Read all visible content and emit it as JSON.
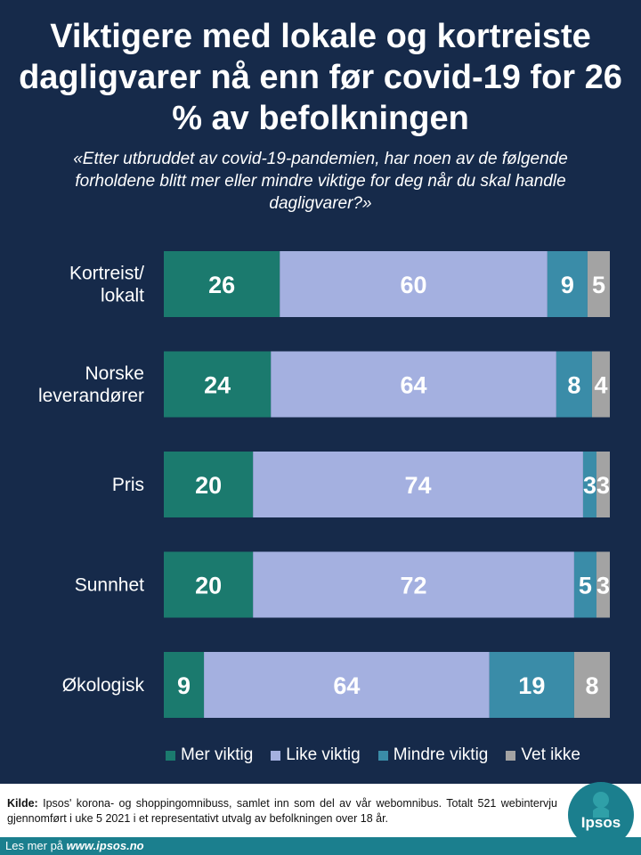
{
  "title": "Viktigere med lokale og kortreiste dagligvarer nå enn før covid-19 for 26 % av befolkningen",
  "subtitle": "«Etter utbruddet av covid-19-pandemien, har noen av de følgende forholdene blitt mer eller mindre viktige for deg når du skal handle dagligvarer?»",
  "chart_data": {
    "type": "bar",
    "orientation": "horizontal",
    "stacked": true,
    "categories": [
      "Kortreist/ lokalt",
      "Norske leverandører",
      "Pris",
      "Sunnhet",
      "Økologisk"
    ],
    "series": [
      {
        "name": "Mer viktig",
        "color": "#1b7a6e",
        "values": [
          26,
          24,
          20,
          20,
          9
        ]
      },
      {
        "name": "Like viktig",
        "color": "#a4b0e0",
        "values": [
          60,
          64,
          74,
          72,
          64
        ]
      },
      {
        "name": "Mindre viktig",
        "color": "#3a8ca8",
        "values": [
          9,
          8,
          3,
          5,
          19
        ]
      },
      {
        "name": "Vet ikke",
        "color": "#a3a3a3",
        "values": [
          5,
          4,
          3,
          3,
          8
        ]
      }
    ],
    "xlim": [
      0,
      100
    ],
    "legend": "bottom"
  },
  "footer": {
    "source_label": "Kilde:",
    "source_text": "Ipsos' korona- og shoppingomnibuss, samlet inn som del av vår webomnibus. Totalt 521 webintervju gjennomført i uke 5 2021 i et representativt utvalg av befolkningen over 18 år.",
    "logo_text": "Ipsos",
    "more_label": "Les mer på",
    "more_link": "www.ipsos.no"
  }
}
